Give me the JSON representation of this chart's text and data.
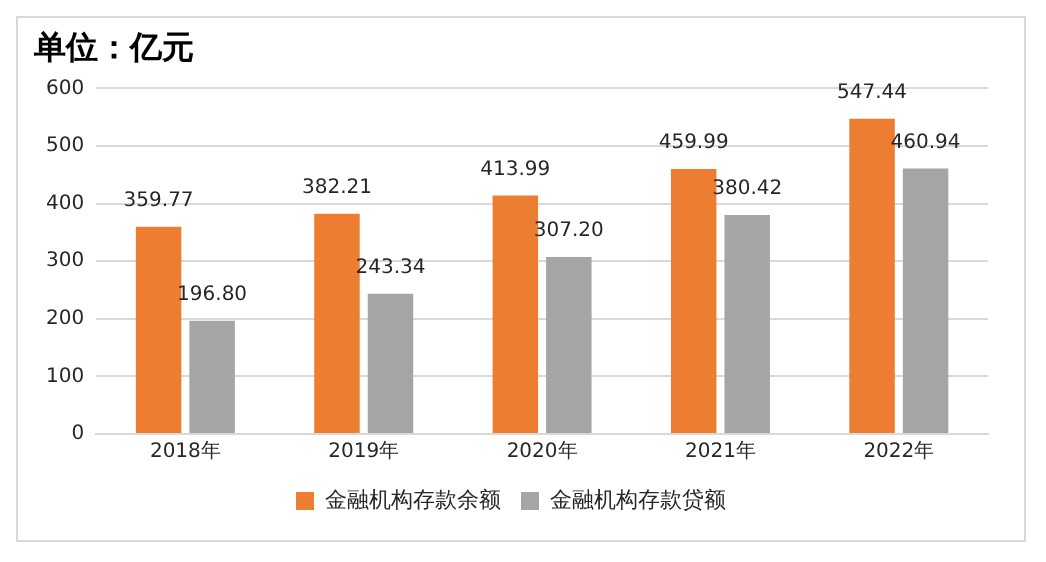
{
  "chart_data": {
    "type": "bar",
    "title": "单位：亿元",
    "categories": [
      "2018年",
      "2019年",
      "2020年",
      "2021年",
      "2022年"
    ],
    "series": [
      {
        "name": "金融机构存款余额",
        "color": "#ed7d31",
        "values": [
          359.77,
          382.21,
          413.99,
          459.99,
          547.44
        ],
        "value_labels": [
          "359.77",
          "382.21",
          "413.99",
          "459.99",
          "547.44"
        ]
      },
      {
        "name": "金融机构存款贷额",
        "color": "#a5a5a5",
        "values": [
          196.8,
          243.34,
          307.2,
          380.42,
          460.94
        ],
        "value_labels": [
          "196.80",
          "243.34",
          "307.20",
          "380.42",
          "460.94"
        ]
      }
    ],
    "ylim": [
      0,
      600
    ],
    "yticks": [
      0,
      100,
      200,
      300,
      400,
      500,
      600
    ],
    "grid": "y",
    "legend": "bottom"
  }
}
